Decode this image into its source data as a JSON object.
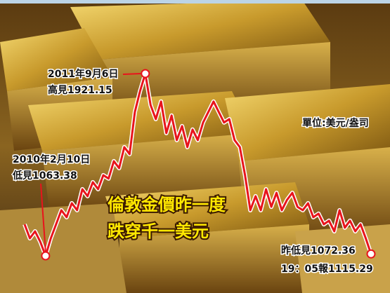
{
  "chart_data": {
    "type": "line",
    "unit": "單位:美元/盎司",
    "headline": [
      "倫敦金價昨一度",
      "跌穿千一美元"
    ],
    "high_label": [
      "2011年9月6日",
      "高見1921.15"
    ],
    "low_label": [
      "2010年2月10日",
      "低見1063.38"
    ],
    "latest_label": [
      "昨低見1072.36",
      "19：05報1115.29"
    ],
    "color": "#e8141c",
    "values": [
      1212,
      1146,
      1179,
      1129,
      1063.38,
      1146,
      1212,
      1278,
      1245,
      1311,
      1278,
      1377,
      1344,
      1410,
      1377,
      1443,
      1427,
      1509,
      1476,
      1575,
      1542,
      1740,
      1839,
      1921.15,
      1773,
      1707,
      1790,
      1641,
      1724,
      1608,
      1674,
      1575,
      1658,
      1608,
      1691,
      1740,
      1790,
      1740,
      1691,
      1707,
      1608,
      1575,
      1443,
      1278,
      1344,
      1278,
      1377,
      1294,
      1360,
      1278,
      1327,
      1360,
      1294,
      1278,
      1311,
      1245,
      1262,
      1212,
      1229,
      1179,
      1278,
      1196,
      1229,
      1179,
      1212,
      1146,
      1072.36
    ]
  }
}
